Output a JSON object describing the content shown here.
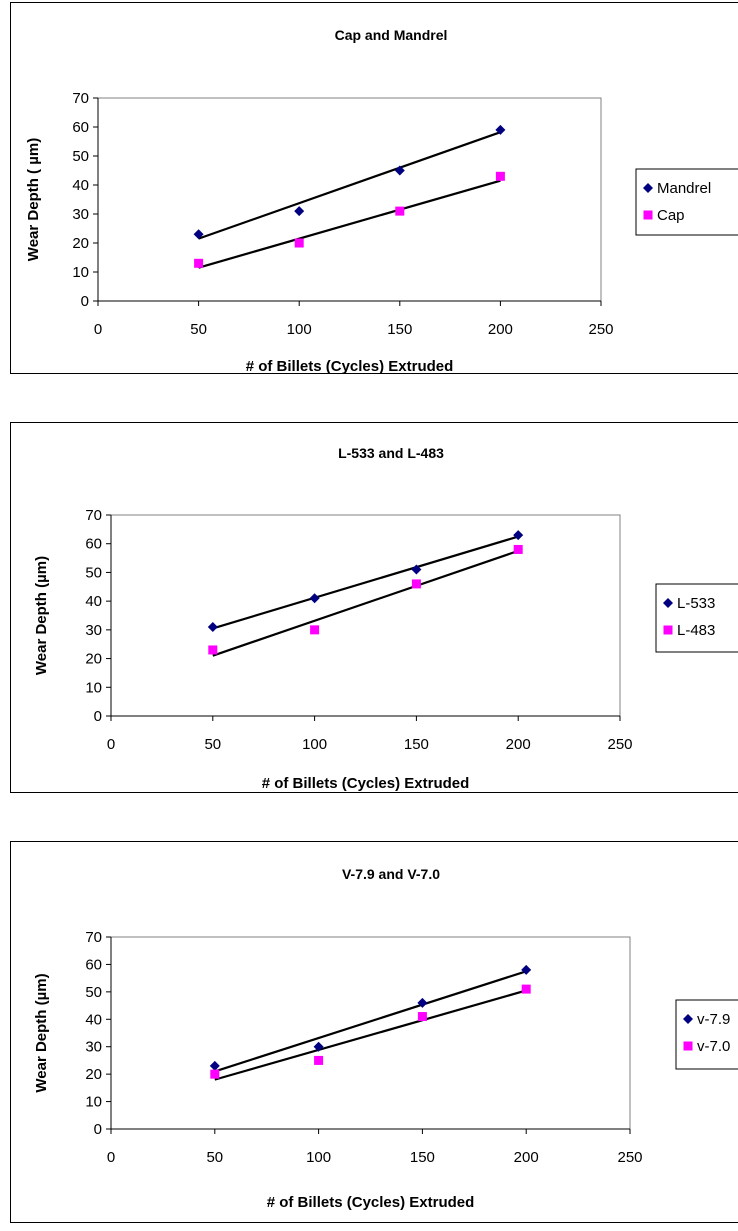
{
  "chart_data": [
    {
      "type": "scatter",
      "title": "Cap and Mandrel",
      "xlabel": "# of Billets (Cycles) Extruded",
      "ylabel": "Wear Depth ( µm)",
      "xlim": [
        0,
        250
      ],
      "ylim": [
        0,
        70
      ],
      "xticks": [
        "0",
        "50",
        "100",
        "150",
        "200",
        "250"
      ],
      "yticks": [
        "0",
        "10",
        "20",
        "30",
        "40",
        "50",
        "60",
        "70"
      ],
      "trendlines": true,
      "legend_position": "right",
      "series": [
        {
          "name": "Mandrel",
          "marker": "diamond",
          "color": "#000080",
          "x": [
            50,
            100,
            150,
            200
          ],
          "y": [
            23,
            31,
            45,
            59
          ],
          "fit": [
            [
              50,
              21.5
            ],
            [
              200,
              58.2
            ]
          ]
        },
        {
          "name": "Cap",
          "marker": "square",
          "color": "#ff00ff",
          "x": [
            50,
            100,
            150,
            200
          ],
          "y": [
            13,
            20,
            31,
            43
          ],
          "fit": [
            [
              50,
              11.5
            ],
            [
              200,
              41.5
            ]
          ]
        }
      ]
    },
    {
      "type": "scatter",
      "title": "L-533 and L-483",
      "xlabel": "# of Billets (Cycles) Extruded",
      "ylabel": "Wear Depth (µm)",
      "xlim": [
        0,
        250
      ],
      "ylim": [
        0,
        70
      ],
      "xticks": [
        "0",
        "50",
        "100",
        "150",
        "200",
        "250"
      ],
      "yticks": [
        "0",
        "10",
        "20",
        "30",
        "40",
        "50",
        "60",
        "70"
      ],
      "trendlines": true,
      "legend_position": "right",
      "series": [
        {
          "name": "L-533",
          "marker": "diamond",
          "color": "#000080",
          "x": [
            50,
            100,
            150,
            200
          ],
          "y": [
            31,
            41,
            51,
            63
          ],
          "fit": [
            [
              50,
              30.5
            ],
            [
              200,
              62.5
            ]
          ]
        },
        {
          "name": "L-483",
          "marker": "square",
          "color": "#ff00ff",
          "x": [
            50,
            100,
            150,
            200
          ],
          "y": [
            23,
            30,
            46,
            58
          ],
          "fit": [
            [
              50,
              21.0
            ],
            [
              200,
              57.5
            ]
          ]
        }
      ]
    },
    {
      "type": "scatter",
      "title": "V-7.9 and V-7.0",
      "xlabel": "# of Billets (Cycles) Extruded",
      "ylabel": "Wear Depth (µm)",
      "xlim": [
        0,
        250
      ],
      "ylim": [
        0,
        70
      ],
      "xticks": [
        "0",
        "50",
        "100",
        "150",
        "200",
        "250"
      ],
      "yticks": [
        "0",
        "10",
        "20",
        "30",
        "40",
        "50",
        "60",
        "70"
      ],
      "trendlines": true,
      "legend_position": "right",
      "series": [
        {
          "name": "v-7.9",
          "marker": "diamond",
          "color": "#000080",
          "x": [
            50,
            100,
            150,
            200
          ],
          "y": [
            23,
            30,
            46,
            58
          ],
          "fit": [
            [
              50,
              21.0
            ],
            [
              200,
              57.5
            ]
          ]
        },
        {
          "name": "v-7.0",
          "marker": "square",
          "color": "#ff00ff",
          "x": [
            50,
            100,
            150,
            200
          ],
          "y": [
            20,
            25,
            41,
            51
          ],
          "fit": [
            [
              50,
              18.0
            ],
            [
              200,
              50.5
            ]
          ]
        }
      ]
    }
  ]
}
